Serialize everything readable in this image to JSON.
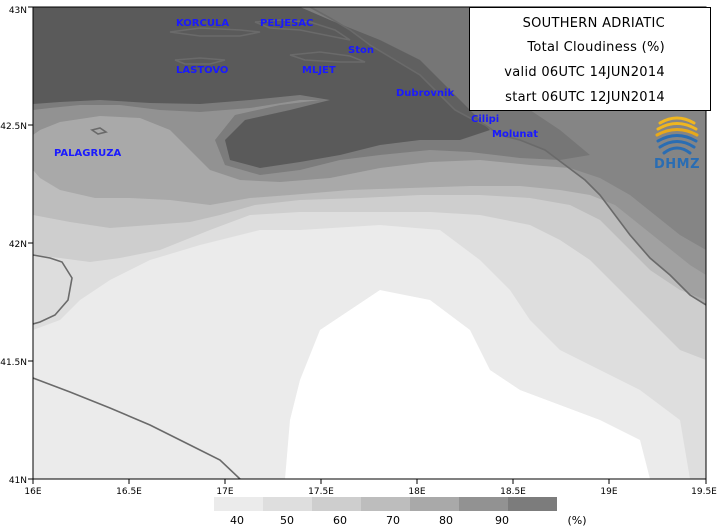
{
  "info": {
    "title": "SOUTHERN ADRIATIC",
    "parameter": "Total Cloudiness (%)",
    "valid": "valid 06UTC 14JUN2014",
    "start": "start 06UTC 12JUN2014"
  },
  "logo": {
    "text": "DHMZ"
  },
  "axes": {
    "x_ticks": [
      "16E",
      "16.5E",
      "17E",
      "17.5E",
      "18E",
      "18.5E",
      "19E",
      "19.5E"
    ],
    "y_ticks": [
      "43N",
      "42.5N",
      "42N",
      "41.5N",
      "41N"
    ]
  },
  "places": [
    "KORCULA",
    "PELJESAC",
    "Ston",
    "LASTOVO",
    "MLJET",
    "Dubrovnik",
    "Cilipi",
    "Molunat",
    "PALAGRUZA"
  ],
  "legend": {
    "labels": [
      "40",
      "50",
      "60",
      "70",
      "80",
      "90"
    ],
    "unit": "(%)",
    "colors": [
      "#ebebeb",
      "#dedede",
      "#cecece",
      "#bdbdbd",
      "#a9a9a9",
      "#929292",
      "#7c7c7c"
    ]
  },
  "colors": {
    "c100": "#5a5a5a",
    "c90": "#7c7c7c",
    "c80": "#929292",
    "c70": "#a9a9a9",
    "c60": "#bdbdbd",
    "c50": "#cecece",
    "c40": "#dedede",
    "c30": "#ebebeb",
    "c0": "#ffffff",
    "coast": "#6e6e6e",
    "label": "#1a1aff"
  }
}
